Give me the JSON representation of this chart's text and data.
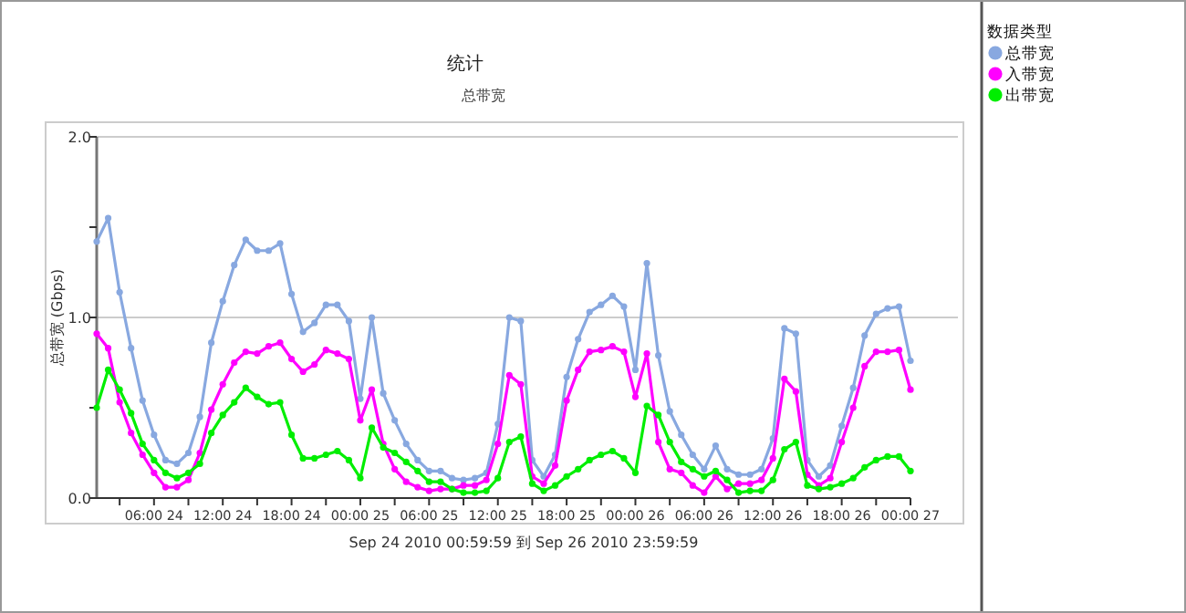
{
  "chart_data": {
    "type": "line",
    "title": "统计",
    "subtitle": "总带宽",
    "xlabel": "Sep 24 2010 00:59:59 到 Sep 26 2010 23:59:59",
    "ylabel": "总带宽 (Gbps)",
    "legend_title": "数据类型",
    "x": [
      "2010-09-24T01:00",
      "2010-09-24T02:00",
      "2010-09-24T03:00",
      "2010-09-24T04:00",
      "2010-09-24T05:00",
      "2010-09-24T06:00",
      "2010-09-24T07:00",
      "2010-09-24T08:00",
      "2010-09-24T09:00",
      "2010-09-24T10:00",
      "2010-09-24T11:00",
      "2010-09-24T12:00",
      "2010-09-24T13:00",
      "2010-09-24T14:00",
      "2010-09-24T15:00",
      "2010-09-24T16:00",
      "2010-09-24T17:00",
      "2010-09-24T18:00",
      "2010-09-24T19:00",
      "2010-09-24T20:00",
      "2010-09-24T21:00",
      "2010-09-24T22:00",
      "2010-09-24T23:00",
      "2010-09-25T00:00",
      "2010-09-25T01:00",
      "2010-09-25T02:00",
      "2010-09-25T03:00",
      "2010-09-25T04:00",
      "2010-09-25T05:00",
      "2010-09-25T06:00",
      "2010-09-25T07:00",
      "2010-09-25T08:00",
      "2010-09-25T09:00",
      "2010-09-25T10:00",
      "2010-09-25T11:00",
      "2010-09-25T12:00",
      "2010-09-25T13:00",
      "2010-09-25T14:00",
      "2010-09-25T15:00",
      "2010-09-25T16:00",
      "2010-09-25T17:00",
      "2010-09-25T18:00",
      "2010-09-25T19:00",
      "2010-09-25T20:00",
      "2010-09-25T21:00",
      "2010-09-25T22:00",
      "2010-09-25T23:00",
      "2010-09-26T00:00",
      "2010-09-26T01:00",
      "2010-09-26T02:00",
      "2010-09-26T03:00",
      "2010-09-26T04:00",
      "2010-09-26T05:00",
      "2010-09-26T06:00",
      "2010-09-26T07:00",
      "2010-09-26T08:00",
      "2010-09-26T09:00",
      "2010-09-26T10:00",
      "2010-09-26T11:00",
      "2010-09-26T12:00",
      "2010-09-26T13:00",
      "2010-09-26T14:00",
      "2010-09-26T15:00",
      "2010-09-26T16:00",
      "2010-09-26T17:00",
      "2010-09-26T18:00",
      "2010-09-26T19:00",
      "2010-09-26T20:00",
      "2010-09-26T21:00",
      "2010-09-26T22:00",
      "2010-09-26T23:00",
      "2010-09-27T00:00"
    ],
    "xlim": [
      "2010-09-24T01:00",
      "2010-09-27T00:00"
    ],
    "xticks": [
      {
        "value": "2010-09-24T03:00",
        "label": null
      },
      {
        "value": "2010-09-24T06:00",
        "label": "06:00 24"
      },
      {
        "value": "2010-09-24T09:00",
        "label": null
      },
      {
        "value": "2010-09-24T12:00",
        "label": "12:00 24"
      },
      {
        "value": "2010-09-24T15:00",
        "label": null
      },
      {
        "value": "2010-09-24T18:00",
        "label": "18:00 24"
      },
      {
        "value": "2010-09-24T21:00",
        "label": null
      },
      {
        "value": "2010-09-25T00:00",
        "label": "00:00 25"
      },
      {
        "value": "2010-09-25T03:00",
        "label": null
      },
      {
        "value": "2010-09-25T06:00",
        "label": "06:00 25"
      },
      {
        "value": "2010-09-25T09:00",
        "label": null
      },
      {
        "value": "2010-09-25T12:00",
        "label": "12:00 25"
      },
      {
        "value": "2010-09-25T15:00",
        "label": null
      },
      {
        "value": "2010-09-25T18:00",
        "label": "18:00 25"
      },
      {
        "value": "2010-09-25T21:00",
        "label": null
      },
      {
        "value": "2010-09-26T00:00",
        "label": "00:00 26"
      },
      {
        "value": "2010-09-26T03:00",
        "label": null
      },
      {
        "value": "2010-09-26T06:00",
        "label": "06:00 26"
      },
      {
        "value": "2010-09-26T09:00",
        "label": null
      },
      {
        "value": "2010-09-26T12:00",
        "label": "12:00 26"
      },
      {
        "value": "2010-09-26T15:00",
        "label": null
      },
      {
        "value": "2010-09-26T18:00",
        "label": "18:00 26"
      },
      {
        "value": "2010-09-26T21:00",
        "label": null
      },
      {
        "value": "2010-09-27T00:00",
        "label": "00:00 27"
      }
    ],
    "ylim": [
      0,
      2
    ],
    "yticks": [
      {
        "value": 0,
        "label": "0.0"
      },
      {
        "value": 0.5,
        "label": null
      },
      {
        "value": 1,
        "label": "1.0"
      },
      {
        "value": 1.5,
        "label": null
      },
      {
        "value": 2,
        "label": "2.0"
      }
    ],
    "grid": "y",
    "legend": "right",
    "marker": "circle",
    "line_style": "solid",
    "series": [
      {
        "name": "总带宽",
        "color": "#88a8e0",
        "values": [
          1.42,
          1.55,
          1.14,
          0.83,
          0.54,
          0.35,
          0.21,
          0.19,
          0.25,
          0.45,
          0.86,
          1.09,
          1.29,
          1.43,
          1.37,
          1.37,
          1.41,
          1.13,
          0.92,
          0.97,
          1.07,
          1.07,
          0.98,
          0.55,
          1.0,
          0.58,
          0.43,
          0.3,
          0.21,
          0.15,
          0.15,
          0.11,
          0.1,
          0.11,
          0.14,
          0.41,
          1.0,
          0.98,
          0.21,
          0.12,
          0.24,
          0.67,
          0.88,
          1.03,
          1.07,
          1.12,
          1.06,
          0.71,
          1.3,
          0.79,
          0.48,
          0.35,
          0.24,
          0.16,
          0.29,
          0.16,
          0.13,
          0.13,
          0.16,
          0.33,
          0.94,
          0.91,
          0.21,
          0.12,
          0.18,
          0.4,
          0.61,
          0.9,
          1.02,
          1.05,
          1.06,
          0.76
        ]
      },
      {
        "name": "入带宽",
        "color": "#ff00ff",
        "values": [
          0.91,
          0.83,
          0.53,
          0.36,
          0.24,
          0.14,
          0.06,
          0.06,
          0.1,
          0.25,
          0.49,
          0.63,
          0.75,
          0.81,
          0.8,
          0.84,
          0.86,
          0.77,
          0.7,
          0.74,
          0.82,
          0.8,
          0.77,
          0.43,
          0.6,
          0.3,
          0.16,
          0.09,
          0.06,
          0.04,
          0.05,
          0.05,
          0.07,
          0.07,
          0.1,
          0.3,
          0.68,
          0.63,
          0.12,
          0.08,
          0.18,
          0.54,
          0.71,
          0.81,
          0.82,
          0.84,
          0.81,
          0.56,
          0.8,
          0.31,
          0.16,
          0.14,
          0.07,
          0.03,
          0.12,
          0.05,
          0.08,
          0.08,
          0.1,
          0.22,
          0.66,
          0.59,
          0.13,
          0.07,
          0.11,
          0.31,
          0.5,
          0.73,
          0.81,
          0.81,
          0.82,
          0.6
        ]
      },
      {
        "name": "出带宽",
        "color": "#00ee00",
        "values": [
          0.5,
          0.71,
          0.6,
          0.47,
          0.3,
          0.21,
          0.14,
          0.11,
          0.14,
          0.19,
          0.36,
          0.46,
          0.53,
          0.61,
          0.56,
          0.52,
          0.53,
          0.35,
          0.22,
          0.22,
          0.24,
          0.26,
          0.21,
          0.11,
          0.39,
          0.28,
          0.25,
          0.2,
          0.15,
          0.09,
          0.09,
          0.05,
          0.03,
          0.03,
          0.04,
          0.11,
          0.31,
          0.34,
          0.08,
          0.04,
          0.07,
          0.12,
          0.16,
          0.21,
          0.24,
          0.26,
          0.22,
          0.14,
          0.51,
          0.46,
          0.31,
          0.2,
          0.16,
          0.12,
          0.15,
          0.1,
          0.03,
          0.04,
          0.04,
          0.1,
          0.27,
          0.31,
          0.07,
          0.05,
          0.06,
          0.08,
          0.11,
          0.17,
          0.21,
          0.23,
          0.23,
          0.15
        ]
      }
    ]
  }
}
